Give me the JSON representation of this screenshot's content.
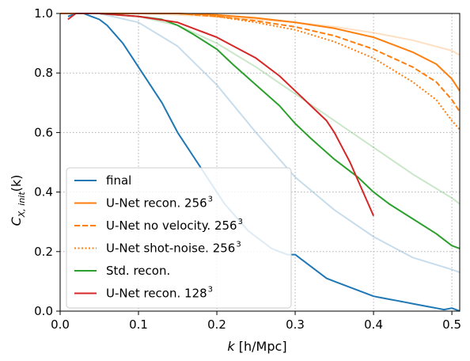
{
  "chart_data": {
    "type": "line",
    "xlabel_var": "k",
    "xlabel_unit": "[h/Mpc]",
    "ylabel_base": "C",
    "ylabel_sub": "X, init",
    "ylabel_arg": "(k)",
    "xlim": [
      0.0,
      0.51
    ],
    "ylim": [
      0.0,
      1.0
    ],
    "x_ticks": [
      "0.0",
      "0.1",
      "0.2",
      "0.3",
      "0.4",
      "0.5"
    ],
    "y_ticks": [
      "0.0",
      "0.2",
      "0.4",
      "0.6",
      "0.8",
      "1.0"
    ],
    "grid": true,
    "legend_position": "lower-left",
    "colors": {
      "final": "#1f77b4",
      "unet": "#ff7f0e",
      "std": "#2ca02c",
      "unet128": "#d62728"
    },
    "legend": [
      {
        "label": "final",
        "sup": "",
        "color": "#1f77b4",
        "dash": "solid"
      },
      {
        "label": "U-Net recon. 256",
        "sup": "3",
        "color": "#ff7f0e",
        "dash": "solid"
      },
      {
        "label": "U-Net no velocity. 256",
        "sup": "3",
        "color": "#ff7f0e",
        "dash": "dashed"
      },
      {
        "label": "U-Net shot-noise. 256",
        "sup": "3",
        "color": "#ff7f0e",
        "dash": "dotted"
      },
      {
        "label": "Std. recon.",
        "sup": "",
        "color": "#2ca02c",
        "dash": "solid"
      },
      {
        "label": "U-Net recon. 128",
        "sup": "3",
        "color": "#d62728",
        "dash": "solid"
      }
    ],
    "series": [
      {
        "name": "faded-unet",
        "color": "#ff7f0e",
        "opacity": 0.25,
        "dash": "solid",
        "width": 2,
        "x": [
          0.0,
          0.05,
          0.1,
          0.15,
          0.2,
          0.25,
          0.3,
          0.35,
          0.4,
          0.45,
          0.5,
          0.51
        ],
        "y": [
          1.0,
          1.0,
          1.0,
          0.995,
          0.99,
          0.98,
          0.97,
          0.955,
          0.935,
          0.91,
          0.875,
          0.86
        ]
      },
      {
        "name": "faded-std",
        "color": "#2ca02c",
        "opacity": 0.25,
        "dash": "solid",
        "width": 2,
        "x": [
          0.0,
          0.05,
          0.1,
          0.15,
          0.2,
          0.25,
          0.3,
          0.35,
          0.4,
          0.45,
          0.5,
          0.51
        ],
        "y": [
          1.0,
          1.0,
          0.99,
          0.96,
          0.9,
          0.82,
          0.73,
          0.64,
          0.55,
          0.46,
          0.38,
          0.36
        ]
      },
      {
        "name": "faded-final",
        "color": "#1f77b4",
        "opacity": 0.25,
        "dash": "solid",
        "width": 2,
        "x": [
          0.0,
          0.05,
          0.1,
          0.15,
          0.2,
          0.25,
          0.3,
          0.35,
          0.4,
          0.45,
          0.5,
          0.51
        ],
        "y": [
          1.0,
          1.0,
          0.97,
          0.89,
          0.76,
          0.6,
          0.45,
          0.34,
          0.25,
          0.18,
          0.14,
          0.13
        ]
      },
      {
        "name": "final",
        "color": "#1f77b4",
        "opacity": 1,
        "dash": "solid",
        "width": 2,
        "x": [
          0.01,
          0.02,
          0.03,
          0.04,
          0.05,
          0.06,
          0.07,
          0.08,
          0.09,
          0.1,
          0.11,
          0.12,
          0.13,
          0.14,
          0.15,
          0.16,
          0.17,
          0.18,
          0.19,
          0.2,
          0.21,
          0.22,
          0.23,
          0.24,
          0.25,
          0.26,
          0.27,
          0.28,
          0.29,
          0.3,
          0.31,
          0.32,
          0.33,
          0.34,
          0.35,
          0.36,
          0.37,
          0.38,
          0.39,
          0.4,
          0.41,
          0.42,
          0.43,
          0.44,
          0.45,
          0.46,
          0.47,
          0.48,
          0.49,
          0.5,
          0.51
        ],
        "y": [
          0.99,
          1.0,
          1.0,
          0.99,
          0.98,
          0.96,
          0.93,
          0.9,
          0.86,
          0.82,
          0.78,
          0.74,
          0.7,
          0.65,
          0.6,
          0.56,
          0.52,
          0.48,
          0.44,
          0.4,
          0.36,
          0.33,
          0.3,
          0.27,
          0.25,
          0.23,
          0.21,
          0.2,
          0.19,
          0.19,
          0.17,
          0.15,
          0.13,
          0.11,
          0.1,
          0.09,
          0.08,
          0.07,
          0.06,
          0.05,
          0.045,
          0.04,
          0.035,
          0.03,
          0.025,
          0.02,
          0.015,
          0.01,
          0.005,
          0.01,
          0.0
        ]
      },
      {
        "name": "Std. recon.",
        "color": "#2ca02c",
        "opacity": 1,
        "dash": "solid",
        "width": 2,
        "x": [
          0.01,
          0.05,
          0.1,
          0.13,
          0.15,
          0.17,
          0.2,
          0.22,
          0.25,
          0.28,
          0.3,
          0.32,
          0.35,
          0.38,
          0.4,
          0.42,
          0.45,
          0.48,
          0.5,
          0.51
        ],
        "y": [
          1.0,
          1.0,
          0.99,
          0.98,
          0.96,
          0.93,
          0.88,
          0.83,
          0.76,
          0.69,
          0.63,
          0.58,
          0.51,
          0.45,
          0.4,
          0.36,
          0.31,
          0.26,
          0.22,
          0.21
        ]
      },
      {
        "name": "U-Net recon. 256^3",
        "color": "#ff7f0e",
        "opacity": 1,
        "dash": "solid",
        "width": 2,
        "x": [
          0.0,
          0.05,
          0.1,
          0.15,
          0.2,
          0.25,
          0.3,
          0.35,
          0.4,
          0.45,
          0.48,
          0.5,
          0.51
        ],
        "y": [
          1.0,
          1.0,
          1.0,
          1.0,
          0.995,
          0.985,
          0.97,
          0.95,
          0.92,
          0.87,
          0.83,
          0.78,
          0.74
        ]
      },
      {
        "name": "U-Net no velocity. 256^3",
        "color": "#ff7f0e",
        "opacity": 1,
        "dash": "dashed",
        "width": 2,
        "x": [
          0.0,
          0.05,
          0.1,
          0.15,
          0.2,
          0.25,
          0.3,
          0.35,
          0.4,
          0.45,
          0.48,
          0.5,
          0.51
        ],
        "y": [
          1.0,
          1.0,
          1.0,
          1.0,
          0.99,
          0.975,
          0.955,
          0.925,
          0.88,
          0.82,
          0.77,
          0.71,
          0.67
        ]
      },
      {
        "name": "U-Net shot-noise. 256^3",
        "color": "#ff7f0e",
        "opacity": 1,
        "dash": "dotted",
        "width": 2,
        "x": [
          0.0,
          0.05,
          0.1,
          0.15,
          0.2,
          0.25,
          0.3,
          0.35,
          0.4,
          0.45,
          0.48,
          0.5,
          0.51
        ],
        "y": [
          1.0,
          1.0,
          1.0,
          1.0,
          0.99,
          0.97,
          0.945,
          0.905,
          0.85,
          0.77,
          0.71,
          0.64,
          0.61
        ]
      },
      {
        "name": "U-Net recon. 128^3",
        "color": "#d62728",
        "opacity": 1,
        "dash": "solid",
        "width": 2,
        "x": [
          0.01,
          0.02,
          0.05,
          0.1,
          0.15,
          0.2,
          0.25,
          0.28,
          0.3,
          0.32,
          0.34,
          0.35,
          0.36,
          0.37,
          0.38,
          0.39,
          0.4
        ],
        "y": [
          0.98,
          1.0,
          1.0,
          0.99,
          0.97,
          0.92,
          0.85,
          0.79,
          0.74,
          0.69,
          0.64,
          0.6,
          0.55,
          0.5,
          0.44,
          0.38,
          0.32
        ]
      }
    ]
  }
}
